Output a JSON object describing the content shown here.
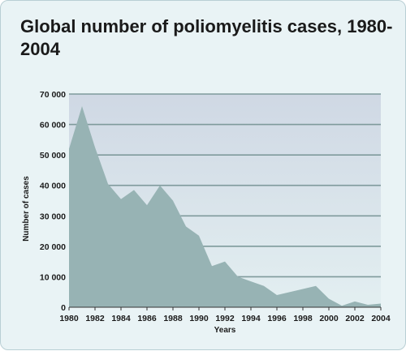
{
  "chart_data": {
    "type": "area",
    "title": "Global number of poliomyelitis cases, 1980-2004",
    "xlabel": "Years",
    "ylabel": "Number of cases",
    "ylim": [
      0,
      70000
    ],
    "xlim": [
      1980,
      2004
    ],
    "yticks": [
      "0",
      "10 000",
      "20 000",
      "30 000",
      "40 000",
      "50 000",
      "60 000",
      "70 000"
    ],
    "xticks": [
      "1980",
      "1982",
      "1984",
      "1986",
      "1988",
      "1990",
      "1992",
      "1994",
      "1996",
      "1998",
      "2000",
      "2002",
      "2004"
    ],
    "grid": true,
    "legend": "none",
    "colors": {
      "area": "#97b3b4",
      "plot_top": "#cfd8e4",
      "plot_bottom": "#e3eff1",
      "grid": "#7f9a9c",
      "background": "#e9f3f5"
    },
    "series": [
      {
        "x": [
          1980,
          1981,
          1982,
          1983,
          1984,
          1985,
          1986,
          1987,
          1988,
          1989,
          1990,
          1991,
          1992,
          1993,
          1994,
          1995,
          1996,
          1997,
          1998,
          1999,
          2000,
          2001,
          2002,
          2003,
          2004
        ],
        "values": [
          52000,
          66000,
          52500,
          40500,
          35500,
          38500,
          33500,
          40000,
          35000,
          26500,
          23500,
          13500,
          15000,
          10000,
          8500,
          7000,
          4000,
          5000,
          6000,
          7000,
          2800,
          500,
          1900,
          800,
          1200
        ]
      }
    ]
  }
}
